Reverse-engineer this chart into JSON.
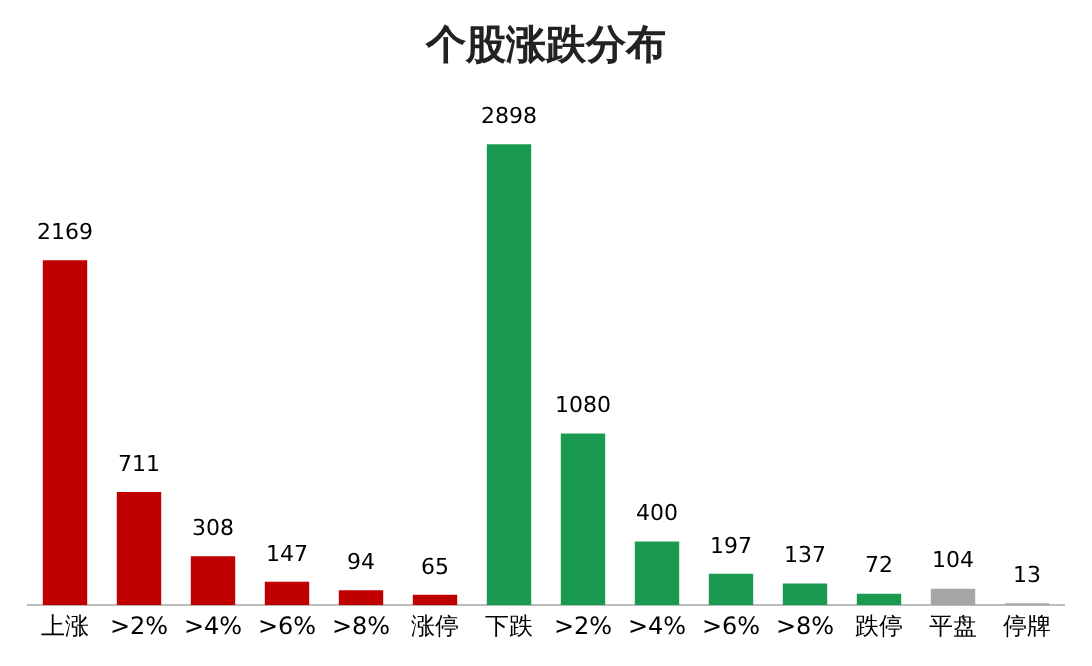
{
  "chart_data": {
    "type": "bar",
    "title": "个股涨跌分布",
    "categories": [
      "上涨",
      ">2%",
      ">4%",
      ">6%",
      ">8%",
      "涨停",
      "下跌",
      ">2%",
      ">4%",
      ">6%",
      ">8%",
      "跌停",
      "平盘",
      "停牌"
    ],
    "values": [
      2169,
      711,
      308,
      147,
      94,
      65,
      2898,
      1080,
      400,
      197,
      137,
      72,
      104,
      13
    ],
    "colors": [
      "#c00000",
      "#c00000",
      "#c00000",
      "#c00000",
      "#c00000",
      "#c00000",
      "#1a9a50",
      "#1a9a50",
      "#1a9a50",
      "#1a9a50",
      "#1a9a50",
      "#1a9a50",
      "#a6a6a6",
      "#a6a6a6"
    ],
    "data_labels": true,
    "grid": false,
    "legend": false
  }
}
